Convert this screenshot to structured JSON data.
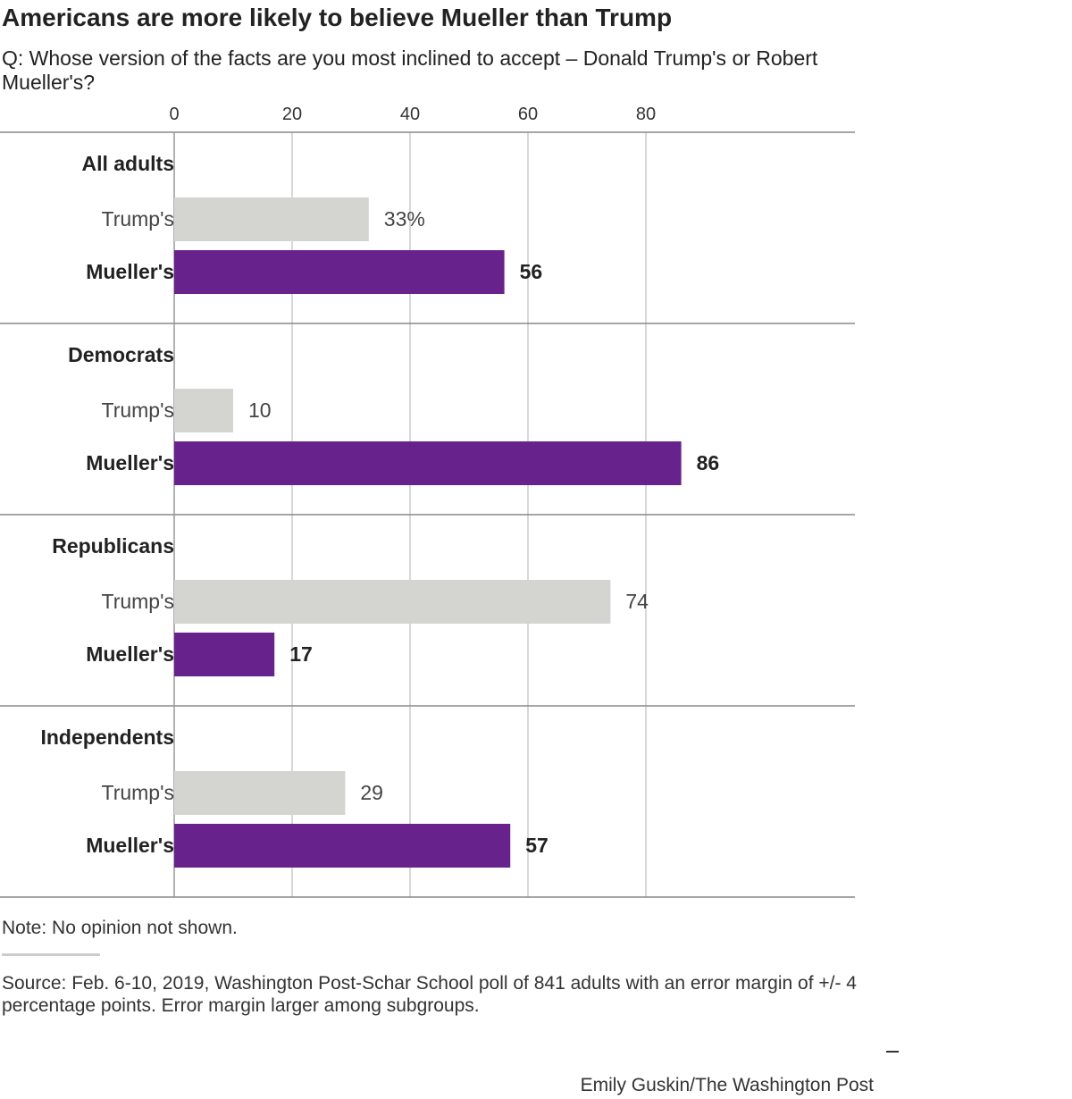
{
  "title": "Americans are more likely to believe Mueller than Trump",
  "subtitle": "Q: Whose version of the facts are you most inclined to accept – Donald Trump's or Robert Mueller's?",
  "note": "Note: No opinion not shown.",
  "source": "Source: Feb. 6-10, 2019, Washington Post-Schar School poll of 841 adults with an error margin of +/- 4 percentage points. Error margin larger among subgroups.",
  "credit": "Emily Guskin/The Washington Post",
  "colors": {
    "trump": "#d4d4d0",
    "mueller": "#68228b",
    "grid": "#cccccc",
    "divider": "#888888",
    "text": "#222222"
  },
  "chart_data": {
    "type": "bar",
    "orientation": "horizontal",
    "title": "Americans are more likely to believe Mueller than Trump",
    "xlim": [
      0,
      100
    ],
    "ticks": [
      0,
      20,
      40,
      60,
      80
    ],
    "tick_labels": [
      "0",
      "20",
      "40",
      "60",
      "80"
    ],
    "unit_suffix_first": "%",
    "groups": [
      {
        "name": "All adults",
        "bars": [
          {
            "label": "Trump's",
            "value": 33,
            "value_label": "33%",
            "series": "trump"
          },
          {
            "label": "Mueller's",
            "value": 56,
            "value_label": "56",
            "series": "mueller"
          }
        ]
      },
      {
        "name": "Democrats",
        "bars": [
          {
            "label": "Trump's",
            "value": 10,
            "value_label": "10",
            "series": "trump"
          },
          {
            "label": "Mueller's",
            "value": 86,
            "value_label": "86",
            "series": "mueller"
          }
        ]
      },
      {
        "name": "Republicans",
        "bars": [
          {
            "label": "Trump's",
            "value": 74,
            "value_label": "74",
            "series": "trump"
          },
          {
            "label": "Mueller's",
            "value": 17,
            "value_label": "17",
            "series": "mueller"
          }
        ]
      },
      {
        "name": "Independents",
        "bars": [
          {
            "label": "Trump's",
            "value": 29,
            "value_label": "29",
            "series": "trump"
          },
          {
            "label": "Mueller's",
            "value": 57,
            "value_label": "57",
            "series": "mueller"
          }
        ]
      }
    ]
  }
}
